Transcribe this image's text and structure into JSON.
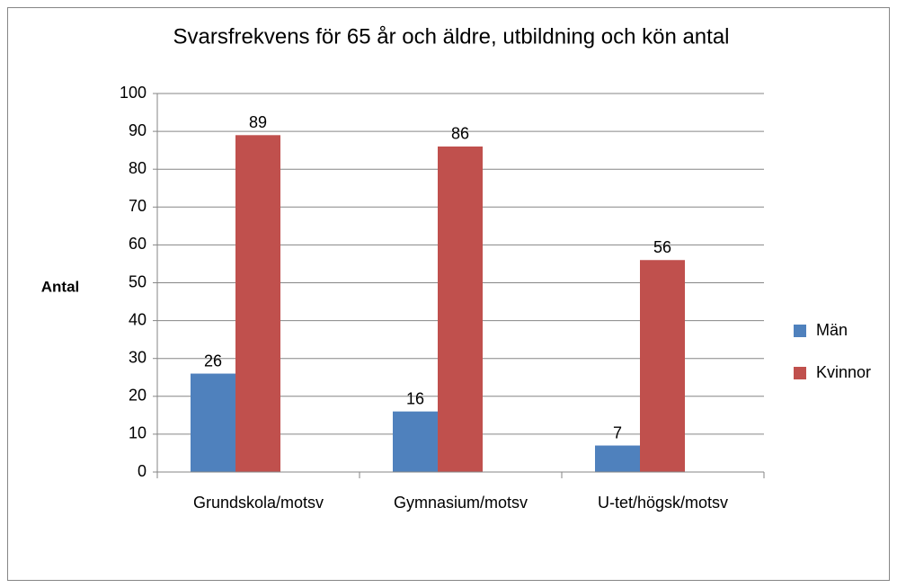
{
  "chart_data": {
    "type": "bar",
    "title": "Svarsfrekvens för 65 år och äldre, utbildning och kön antal",
    "y_label": "Antal",
    "categories": [
      "Grundskola/motsv",
      "Gymnasium/motsv",
      "U-tet/högsk/motsv"
    ],
    "series": [
      {
        "name": "Män",
        "color": "#4f81bd",
        "values": [
          26,
          16,
          7
        ]
      },
      {
        "name": "Kvinnor",
        "color": "#c0504d",
        "values": [
          89,
          86,
          56
        ]
      }
    ],
    "ylim": [
      0,
      100
    ],
    "yticks": [
      0,
      10,
      20,
      30,
      40,
      50,
      60,
      70,
      80,
      90,
      100
    ],
    "grid": true,
    "legend": "right"
  }
}
